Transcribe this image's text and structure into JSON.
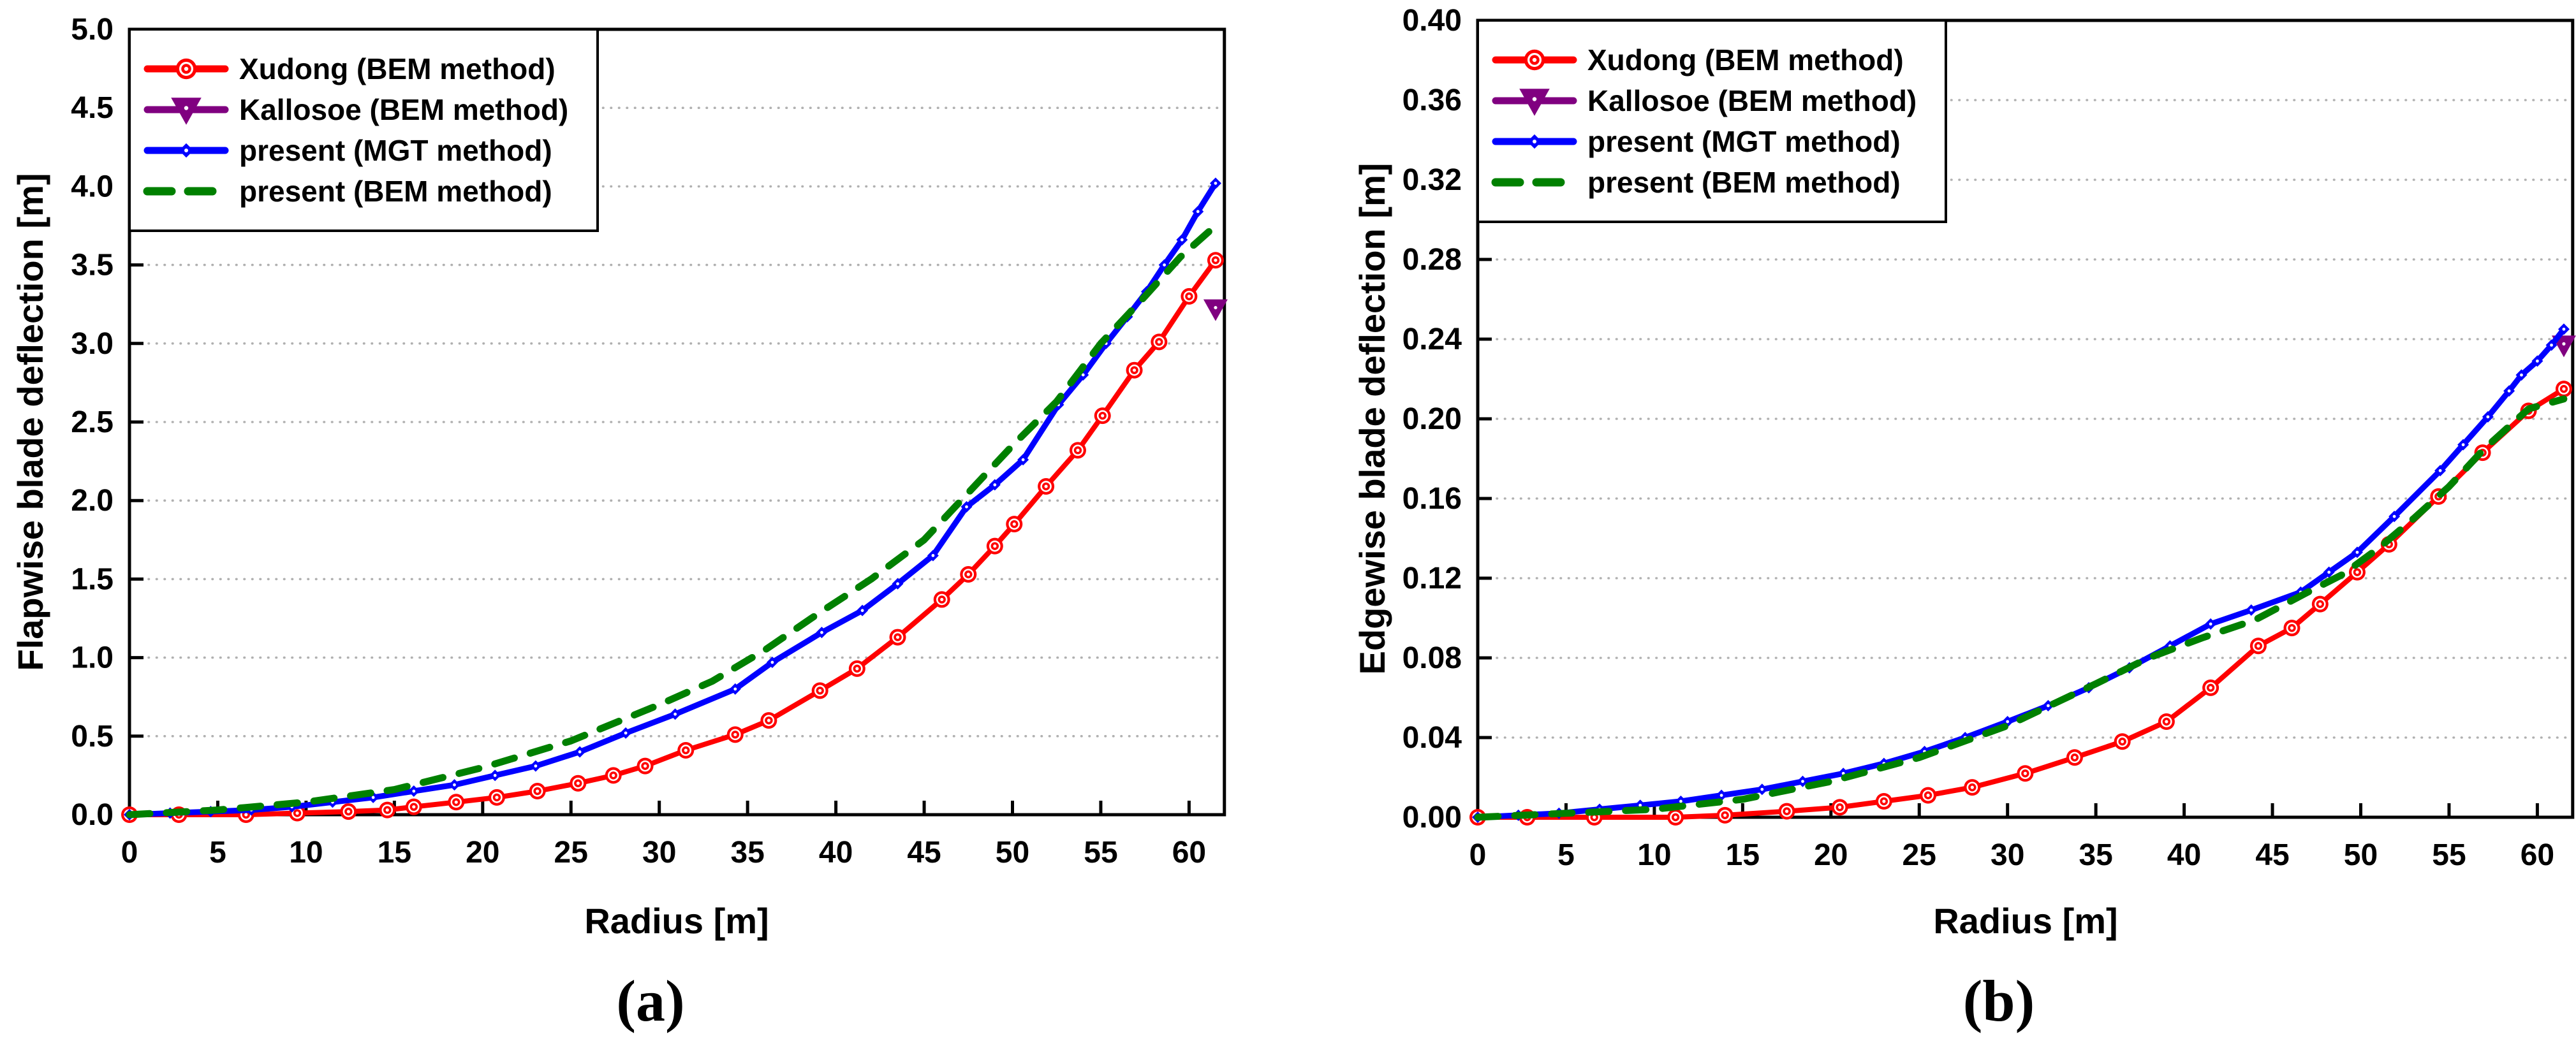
{
  "style": {
    "background": "#ffffff",
    "frame_color": "#000000",
    "grid_color": "#b0b0b0",
    "text_color": "#000000",
    "series_colors": [
      "#ff0000",
      "#800080",
      "#0000ff",
      "#008000"
    ]
  },
  "chart_data": [
    {
      "id": "a",
      "type": "line",
      "caption": "(a)",
      "xlabel": "Radius [m]",
      "ylabel": "Flapwise blade deflection [m]",
      "xlim": [
        0,
        62
      ],
      "ylim": [
        0,
        5.0
      ],
      "xticks": [
        0,
        5,
        10,
        15,
        20,
        25,
        30,
        35,
        40,
        45,
        50,
        55,
        60
      ],
      "ytick_step": 0.5,
      "ytick_decimals": 1,
      "grid": "horizontal-dotted",
      "legend_position": "top-left",
      "series": [
        {
          "name": "Xudong (BEM method)",
          "color": "#ff0000",
          "marker": "circle-dot",
          "line": "solid",
          "x": [
            0,
            2.8,
            6.6,
            9.5,
            12.4,
            14.6,
            16.1,
            18.5,
            20.8,
            23.1,
            25.4,
            27.4,
            29.2,
            31.5,
            34.3,
            36.2,
            39.1,
            41.2,
            43.5,
            46.0,
            47.5,
            49.0,
            50.1,
            51.9,
            53.7,
            55.1,
            56.9,
            58.3,
            60.0,
            61.5
          ],
          "y": [
            0.0,
            0.0,
            0.0,
            0.01,
            0.02,
            0.03,
            0.05,
            0.08,
            0.11,
            0.15,
            0.2,
            0.25,
            0.31,
            0.41,
            0.51,
            0.6,
            0.79,
            0.93,
            1.13,
            1.37,
            1.53,
            1.71,
            1.85,
            2.09,
            2.32,
            2.54,
            2.83,
            3.01,
            3.3,
            3.53
          ]
        },
        {
          "name": "Kallosoe (BEM method)",
          "color": "#800080",
          "marker": "triangle-down",
          "line": "solid",
          "x": [
            61.5
          ],
          "y": [
            3.22
          ]
        },
        {
          "name": "present (MGT method)",
          "color": "#0000ff",
          "marker": "diamond-dot",
          "line": "solid",
          "x": [
            0,
            2.3,
            4.6,
            6.9,
            9.2,
            11.5,
            13.8,
            16.1,
            18.4,
            20.7,
            23.0,
            25.5,
            28.1,
            30.9,
            34.3,
            36.4,
            39.2,
            41.5,
            43.5,
            45.5,
            47.4,
            49.0,
            50.6,
            52.6,
            54.0,
            55.3,
            56.5,
            57.6,
            58.6,
            59.6,
            60.5,
            61.5
          ],
          "y": [
            0.0,
            0.01,
            0.02,
            0.03,
            0.05,
            0.08,
            0.11,
            0.15,
            0.19,
            0.25,
            0.31,
            0.4,
            0.52,
            0.64,
            0.8,
            0.97,
            1.16,
            1.3,
            1.47,
            1.65,
            1.96,
            2.1,
            2.26,
            2.61,
            2.8,
            3.0,
            3.17,
            3.33,
            3.5,
            3.66,
            3.84,
            4.02
          ]
        },
        {
          "name": "present (BEM method)",
          "color": "#008000",
          "marker": "none",
          "line": "dashed",
          "x": [
            0,
            5,
            10,
            15,
            20,
            25,
            30,
            33,
            36,
            39,
            42,
            45,
            47.5,
            50,
            52.5,
            55,
            57.5,
            59.5,
            61.5
          ],
          "y": [
            0.0,
            0.03,
            0.08,
            0.16,
            0.3,
            0.47,
            0.7,
            0.85,
            1.05,
            1.28,
            1.5,
            1.75,
            2.05,
            2.35,
            2.63,
            3.0,
            3.3,
            3.55,
            3.75
          ]
        }
      ]
    },
    {
      "id": "b",
      "type": "line",
      "caption": "(b)",
      "xlabel": "Radius [m]",
      "ylabel": "Edgewise blade deflection [m]",
      "xlim": [
        0,
        62
      ],
      "ylim": [
        0,
        0.4
      ],
      "xticks": [
        0,
        5,
        10,
        15,
        20,
        25,
        30,
        35,
        40,
        45,
        50,
        55,
        60
      ],
      "ytick_step": 0.04,
      "ytick_decimals": 2,
      "grid": "horizontal-dotted",
      "legend_position": "top-left",
      "series": [
        {
          "name": "Xudong (BEM method)",
          "color": "#ff0000",
          "marker": "circle-dot",
          "line": "solid",
          "x": [
            0,
            2.8,
            6.6,
            11.2,
            14.0,
            17.5,
            20.5,
            23.0,
            25.5,
            28.0,
            31.0,
            33.8,
            36.5,
            39.0,
            41.5,
            44.2,
            46.1,
            47.7,
            49.8,
            51.6,
            54.4,
            56.9,
            59.5,
            61.5
          ],
          "y": [
            0.0,
            0.0,
            0.0,
            0.0,
            0.001,
            0.003,
            0.005,
            0.008,
            0.011,
            0.015,
            0.022,
            0.03,
            0.038,
            0.048,
            0.065,
            0.086,
            0.095,
            0.107,
            0.123,
            0.137,
            0.161,
            0.183,
            0.204,
            0.215
          ]
        },
        {
          "name": "Kallosoe (BEM method)",
          "color": "#800080",
          "marker": "triangle-down",
          "line": "solid",
          "x": [
            61.5
          ],
          "y": [
            0.237
          ]
        },
        {
          "name": "present (MGT method)",
          "color": "#0000ff",
          "marker": "diamond-dot",
          "line": "solid",
          "x": [
            0,
            2.3,
            4.6,
            6.9,
            9.2,
            11.5,
            13.8,
            16.1,
            18.4,
            20.7,
            23.0,
            25.3,
            27.6,
            30.0,
            32.3,
            34.6,
            36.9,
            39.2,
            41.5,
            43.8,
            46.6,
            48.2,
            49.8,
            51.9,
            54.5,
            55.8,
            57.2,
            58.4,
            59.1,
            60.0,
            60.8,
            61.5
          ],
          "y": [
            0.0,
            0.001,
            0.002,
            0.004,
            0.006,
            0.008,
            0.011,
            0.014,
            0.018,
            0.022,
            0.027,
            0.033,
            0.04,
            0.048,
            0.056,
            0.065,
            0.075,
            0.086,
            0.097,
            0.104,
            0.113,
            0.123,
            0.133,
            0.151,
            0.174,
            0.187,
            0.201,
            0.214,
            0.222,
            0.229,
            0.237,
            0.245
          ]
        },
        {
          "name": "present (BEM method)",
          "color": "#008000",
          "marker": "none",
          "line": "dashed",
          "x": [
            0,
            5,
            10,
            15,
            20,
            25,
            30,
            35,
            38,
            41,
            44,
            47,
            49,
            51,
            53,
            55,
            57,
            59.5,
            61.5
          ],
          "y": [
            0.0,
            0.002,
            0.004,
            0.009,
            0.018,
            0.03,
            0.046,
            0.067,
            0.08,
            0.09,
            0.099,
            0.113,
            0.122,
            0.135,
            0.15,
            0.166,
            0.185,
            0.205,
            0.21
          ]
        }
      ]
    }
  ]
}
